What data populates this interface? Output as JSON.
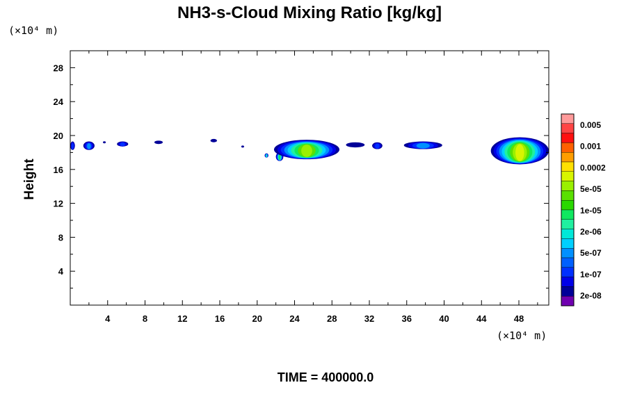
{
  "chart_data": {
    "type": "heatmap",
    "title": "NH3-s-Cloud Mixing Ratio [kg/kg]",
    "xlabel": "",
    "ylabel": "Height",
    "x_unit": "(×10⁴ m)",
    "y_unit": "(×10⁴ m)",
    "xlim": [
      0,
      51.2
    ],
    "ylim": [
      0,
      30
    ],
    "x_ticks": [
      4,
      8,
      12,
      16,
      20,
      24,
      28,
      32,
      36,
      40,
      44,
      48
    ],
    "y_ticks": [
      4,
      8,
      12,
      16,
      20,
      24,
      28
    ],
    "colorbar": {
      "labels": [
        "0.005",
        "0.001",
        "0.0002",
        "5e-05",
        "1e-05",
        "2e-06",
        "5e-07",
        "1e-07",
        "2e-08"
      ],
      "colors": [
        "#ff9a9a",
        "#ff4444",
        "#ff1010",
        "#ff6000",
        "#ff9e00",
        "#ffe000",
        "#d8f500",
        "#9af000",
        "#5ae000",
        "#2ad800",
        "#10e860",
        "#20f0a0",
        "#00e8d8",
        "#00d0ff",
        "#0090ff",
        "#0060ff",
        "#0030ff",
        "#0000e8",
        "#000098",
        "#7000b0"
      ]
    },
    "clouds": [
      {
        "x": [
          0,
          0.5
        ],
        "y": [
          18.3,
          19.3
        ],
        "level": "1e-07"
      },
      {
        "x": [
          1.4,
          2.6
        ],
        "y": [
          18.3,
          19.3
        ],
        "level": "1e-06"
      },
      {
        "x": [
          3.5,
          3.8
        ],
        "y": [
          19.1,
          19.3
        ],
        "level": "2e-08"
      },
      {
        "x": [
          5.0,
          6.2
        ],
        "y": [
          18.7,
          19.3
        ],
        "level": "1e-07"
      },
      {
        "x": [
          9.0,
          9.9
        ],
        "y": [
          19.0,
          19.4
        ],
        "level": "2e-08"
      },
      {
        "x": [
          15.0,
          15.7
        ],
        "y": [
          19.2,
          19.6
        ],
        "level": "2e-08"
      },
      {
        "x": [
          18.3,
          18.6
        ],
        "y": [
          18.6,
          18.8
        ],
        "level": "2e-08"
      },
      {
        "x": [
          20.8,
          21.2
        ],
        "y": [
          17.4,
          17.9
        ],
        "level": "5e-06"
      },
      {
        "x": [
          22.0,
          22.8
        ],
        "y": [
          17.0,
          18.0
        ],
        "level": "1e-05"
      },
      {
        "x": [
          21.8,
          28.8
        ],
        "y": [
          17.2,
          19.5
        ],
        "level": "5e-05"
      },
      {
        "x": [
          29.5,
          31.5
        ],
        "y": [
          18.6,
          19.2
        ],
        "level": "2e-08"
      },
      {
        "x": [
          32.3,
          33.4
        ],
        "y": [
          18.4,
          19.2
        ],
        "level": "1e-07"
      },
      {
        "x": [
          35.7,
          39.8
        ],
        "y": [
          18.4,
          19.3
        ],
        "level": "5e-07"
      },
      {
        "x": [
          45.0,
          51.2
        ],
        "y": [
          16.6,
          19.8
        ],
        "level": "0.0002"
      }
    ]
  },
  "footer": {
    "time_label": "TIME = 400000.0"
  }
}
